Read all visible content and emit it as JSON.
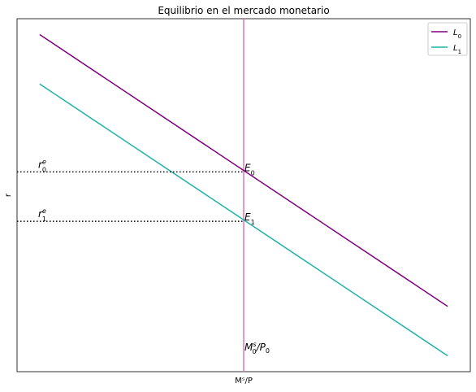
{
  "chart_data": {
    "type": "line",
    "title": "Equilibrio en el mercado monetario",
    "xlabel": "Mˢ/P",
    "ylabel": "r",
    "xlim": [
      0,
      1
    ],
    "ylim": [
      0,
      1
    ],
    "grid": false,
    "legend_position": "top-right",
    "series": [
      {
        "name_main": "L",
        "name_sub": "0",
        "color": "#800080",
        "x": [
          0.05,
          0.95
        ],
        "y": [
          0.955,
          0.185
        ]
      },
      {
        "name_main": "L",
        "name_sub": "1",
        "color": "#20b2aa",
        "x": [
          0.05,
          0.95
        ],
        "y": [
          0.815,
          0.045
        ]
      }
    ],
    "supply_line": {
      "x": 0.5,
      "color": "#e377c2"
    },
    "equilibria": [
      {
        "main": "E",
        "sub": "0",
        "x": 0.5,
        "y": 0.566
      },
      {
        "main": "E",
        "sub": "1",
        "x": 0.5,
        "y": 0.426
      }
    ],
    "rate_labels": [
      {
        "main": "r",
        "sub": "0",
        "sup": "e",
        "y": 0.566
      },
      {
        "main": "r",
        "sub": "1",
        "sup": "e",
        "y": 0.426
      }
    ],
    "supply_label": {
      "a": "M",
      "a_sub": "0",
      "a_sup": "s",
      "slash": "/",
      "b": "P",
      "b_sub": "0"
    }
  }
}
